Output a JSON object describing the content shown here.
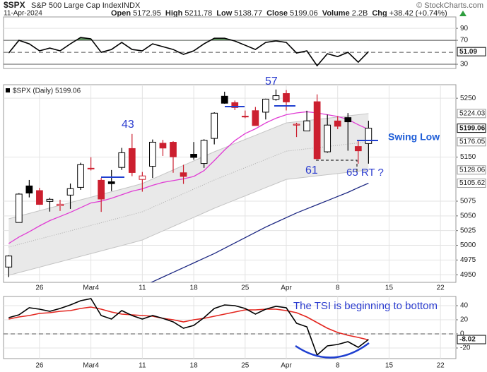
{
  "header": {
    "symbol": "$SPX",
    "name": "S&P 500 Large Cap Index",
    "exchange": "INDX",
    "date": "11-Apr-2024",
    "stats": [
      {
        "label": "Open",
        "value": "5172.95"
      },
      {
        "label": "High",
        "value": "5211.78"
      },
      {
        "label": "Low",
        "value": "5138.77"
      },
      {
        "label": "Close",
        "value": "5199.06"
      },
      {
        "label": "Volume",
        "value": "2.2B"
      },
      {
        "label": "Chg",
        "value": "+38.42 (+0.74%)"
      }
    ],
    "source": "© StockCharts.com"
  },
  "annotations": [
    "43",
    "57",
    "61",
    "65 RT ?",
    "Swing Low",
    "The TSI is beginning to bottom"
  ],
  "chart_data": [
    {
      "type": "line",
      "ylim": [
        23,
        109
      ],
      "yticks": [
        30,
        70,
        90
      ],
      "grid": true,
      "reference_lines": [
        {
          "value": 30,
          "style": "solid"
        },
        {
          "value": 50,
          "style": "dashed"
        },
        {
          "value": 70,
          "style": "solid"
        }
      ],
      "fill_above": {
        "level": 70,
        "color": "#5f8f5f"
      },
      "series": [
        {
          "color": "#000000",
          "show_last": true,
          "values": [
            48.8,
            70,
            64.1,
            52.4,
            57.1,
            52.4,
            64.1,
            74.7,
            72.4,
            50,
            54.7,
            66.5,
            54.7,
            52.4,
            64.1,
            59.4,
            54.7,
            46.5,
            52.4,
            64.1,
            73.5,
            73.5,
            68.8,
            61.8,
            54.7,
            66.5,
            69,
            66.5,
            48.8,
            52.4,
            27.6,
            47.6,
            42.9,
            50,
            33.5,
            51.09,
            null,
            null,
            null,
            null,
            null,
            null,
            null,
            null
          ]
        }
      ]
    },
    {
      "type": "candlestick",
      "legend": "$SPX (Daily) 5199.06",
      "ylim": [
        4937,
        5273
      ],
      "yticks": [
        4950,
        4975,
        5000,
        5025,
        5050,
        5075,
        5150,
        5250
      ],
      "grid": true,
      "up_color": "#000000",
      "down_color": "#cc1f2f",
      "show_last": true,
      "categories": [
        null,
        null,
        null,
        "26",
        null,
        null,
        null,
        null,
        "Mar4",
        null,
        null,
        null,
        null,
        "11",
        null,
        null,
        null,
        null,
        "18",
        null,
        null,
        null,
        null,
        "25",
        null,
        null,
        null,
        "Apr",
        null,
        null,
        null,
        null,
        "8",
        null,
        null,
        null,
        null,
        "15",
        null,
        null,
        null,
        null,
        "22",
        null
      ],
      "open": [
        4963.03,
        5038.83,
        5100.92,
        5093.0,
        5074.6,
        5067.2,
        5085.36,
        5098.51,
        5130.99,
        5110.52,
        5108.03,
        5132.38,
        5164.46,
        5111.96,
        5134.3,
        5173.49,
        5175.14,
        5123.31,
        5154.77,
        5139.09,
        5181.69,
        5253.43,
        5242.48,
        5219.52,
        5228.85,
        5226.31,
        5248.03,
        5257.97,
        5204.29,
        5194.37,
        5244.05,
        5158.95,
        5211.37,
        5217.03,
        5167.88,
        5172.95,
        null,
        null,
        null,
        null,
        null,
        null,
        null,
        null
      ],
      "high": [
        4983.21,
        5088.62,
        5111.06,
        5097.66,
        5080.69,
        5077.37,
        5104.99,
        5140.33,
        5149.67,
        5114.54,
        5127.97,
        5165.62,
        5189.26,
        5124.66,
        5179.87,
        5179.14,
        5176.85,
        5136.86,
        5175.6,
        5180.31,
        5226.19,
        5261.1,
        5246.09,
        5229.09,
        5235.16,
        5249.26,
        5264.85,
        5263.95,
        5208.34,
        5228.75,
        5256.59,
        5222.18,
        5219.57,
        5224.81,
        5178.43,
        5211.78,
        null,
        null,
        null,
        null,
        null,
        null,
        null,
        null
      ],
      "low": [
        4946.0,
        5038.83,
        5081.46,
        5068.91,
        5057.29,
        5058.35,
        5061.89,
        5094.16,
        5127.18,
        5056.82,
        5092.22,
        5128.21,
        5117.5,
        5091.14,
        5114.48,
        5151.88,
        5123.3,
        5104.35,
        5145.47,
        5131.59,
        5171.55,
        5240.66,
        5229.87,
        5216.09,
        5203.42,
        5213.92,
        5245.82,
        5229.2,
        5184.05,
        5194.37,
        5146.06,
        5157.21,
        5197.35,
        5160.78,
        5138.7,
        5138.77,
        null,
        null,
        null,
        null,
        null,
        null,
        null,
        null
      ],
      "close": [
        4981.8,
        5087.03,
        5088.8,
        5069.53,
        5078.18,
        5069.76,
        5096.27,
        5137.08,
        5130.95,
        5078.65,
        5104.76,
        5157.36,
        5123.69,
        5117.94,
        5175.27,
        5165.31,
        5150.48,
        5117.09,
        5149.42,
        5178.51,
        5224.62,
        5241.53,
        5234.18,
        5218.19,
        5203.58,
        5248.49,
        5254.35,
        5243.77,
        5205.81,
        5211.49,
        5147.21,
        5204.34,
        5202.39,
        5209.91,
        5160.64,
        5199.06,
        null,
        null,
        null,
        null,
        null,
        null,
        null,
        null
      ],
      "band": {
        "fill": "#e9e9e9",
        "stroke": "#c4c4c4",
        "show_last": true,
        "upper": [
          5045,
          5049.6,
          5054.2,
          5058.8,
          5063.4,
          5068,
          5072.6,
          5077.2,
          5081.8,
          5086.4,
          5091,
          5095.6,
          5100.2,
          5105,
          5112.7,
          5120.4,
          5128.1,
          5135.8,
          5143.5,
          5151.2,
          5159,
          5166,
          5173,
          5180,
          5187,
          5194,
          5201,
          5208,
          5210,
          5212,
          5214,
          5216,
          5218,
          5220,
          5222,
          5224.03,
          null,
          null,
          null,
          null,
          null,
          null,
          null,
          null
        ],
        "middle": [
          4997,
          5001.6,
          5006.2,
          5010.8,
          5015.4,
          5020,
          5024.6,
          5029.2,
          5033.8,
          5038.4,
          5043,
          5047.6,
          5052.2,
          5057,
          5064.7,
          5072.4,
          5080.1,
          5087.8,
          5095.5,
          5103.2,
          5111,
          5118,
          5125,
          5132,
          5139,
          5146,
          5153,
          5160,
          5162,
          5164,
          5166,
          5168,
          5170,
          5172,
          5174,
          5176.05,
          null,
          null,
          null,
          null,
          null,
          null,
          null,
          null
        ],
        "lower": [
          4949,
          4953.6,
          4958.2,
          4962.8,
          4967.4,
          4972,
          4976.6,
          4981.2,
          4985.8,
          4990.4,
          4995,
          4999.6,
          5004.2,
          5009,
          5016.7,
          5024.4,
          5032.1,
          5039.8,
          5047.5,
          5055.2,
          5063,
          5070,
          5077,
          5084,
          5091,
          5098,
          5105,
          5112,
          5114,
          5116,
          5118,
          5120,
          5122,
          5124,
          5126,
          5128.06,
          null,
          null,
          null,
          null,
          null,
          null,
          null,
          null
        ]
      },
      "overlays": [
        {
          "color": "#e03cd4",
          "values": [
            5003,
            5014,
            5023,
            5033,
            5042,
            5049,
            5056,
            5064,
            5072,
            5075,
            5080,
            5086,
            5092,
            5096,
            5102,
            5107,
            5110,
            5113,
            5117,
            5127,
            5144,
            5162,
            5178,
            5190,
            5198,
            5208,
            5216,
            5222,
            5225,
            5227,
            5225,
            5222,
            5219,
            5214,
            5205,
            5197,
            null,
            null,
            null,
            null,
            null,
            null,
            null,
            null
          ]
        },
        {
          "color": "#1c2782",
          "show_last": true,
          "values": [
            null,
            null,
            null,
            null,
            null,
            null,
            null,
            null,
            null,
            null,
            null,
            null,
            null,
            4930,
            4938,
            4946,
            4954,
            4962,
            4970,
            4978,
            4986,
            4995,
            5004,
            5013,
            5022,
            5031,
            5039,
            5047,
            5055,
            5062,
            5069,
            5076,
            5083,
            5090,
            5098,
            5105.62,
            null,
            null,
            null,
            null,
            null,
            null,
            null,
            null
          ]
        }
      ]
    },
    {
      "type": "line",
      "ylim": [
        -35,
        53
      ],
      "yticks": [
        -20,
        0,
        20,
        40
      ],
      "grid": true,
      "reference_lines": [
        {
          "value": 0,
          "style": "dashed"
        }
      ],
      "categories": [
        null,
        null,
        null,
        "26",
        null,
        null,
        null,
        null,
        "Mar4",
        null,
        null,
        null,
        null,
        "11",
        null,
        null,
        null,
        null,
        "18",
        null,
        null,
        null,
        null,
        "25",
        null,
        null,
        null,
        "Apr",
        null,
        null,
        null,
        null,
        "8",
        null,
        null,
        null,
        null,
        "15",
        null,
        null,
        null,
        null,
        "22",
        null
      ],
      "series": [
        {
          "color": "#e3261f",
          "values": [
            21,
            24,
            26,
            29,
            30,
            32,
            33,
            36,
            38,
            35,
            31,
            28,
            27,
            26,
            25,
            22,
            20,
            17,
            20,
            22,
            25,
            28,
            31,
            34,
            34,
            35,
            35,
            33,
            30,
            24,
            16,
            8,
            2,
            -2,
            -5,
            -8.5,
            null,
            null,
            null,
            null,
            null,
            null,
            null,
            null
          ]
        },
        {
          "color": "#000000",
          "show_last": true,
          "values": [
            23,
            27,
            37,
            35,
            32,
            36,
            41,
            47,
            50,
            26,
            21,
            33,
            26,
            21,
            26,
            22,
            17,
            8,
            12,
            23,
            36,
            41,
            40,
            36,
            28,
            35,
            39,
            37,
            15,
            10,
            -30,
            -17,
            -15,
            -11,
            -19,
            -8.02,
            null,
            null,
            null,
            null,
            null,
            null,
            null,
            null
          ]
        }
      ]
    }
  ]
}
